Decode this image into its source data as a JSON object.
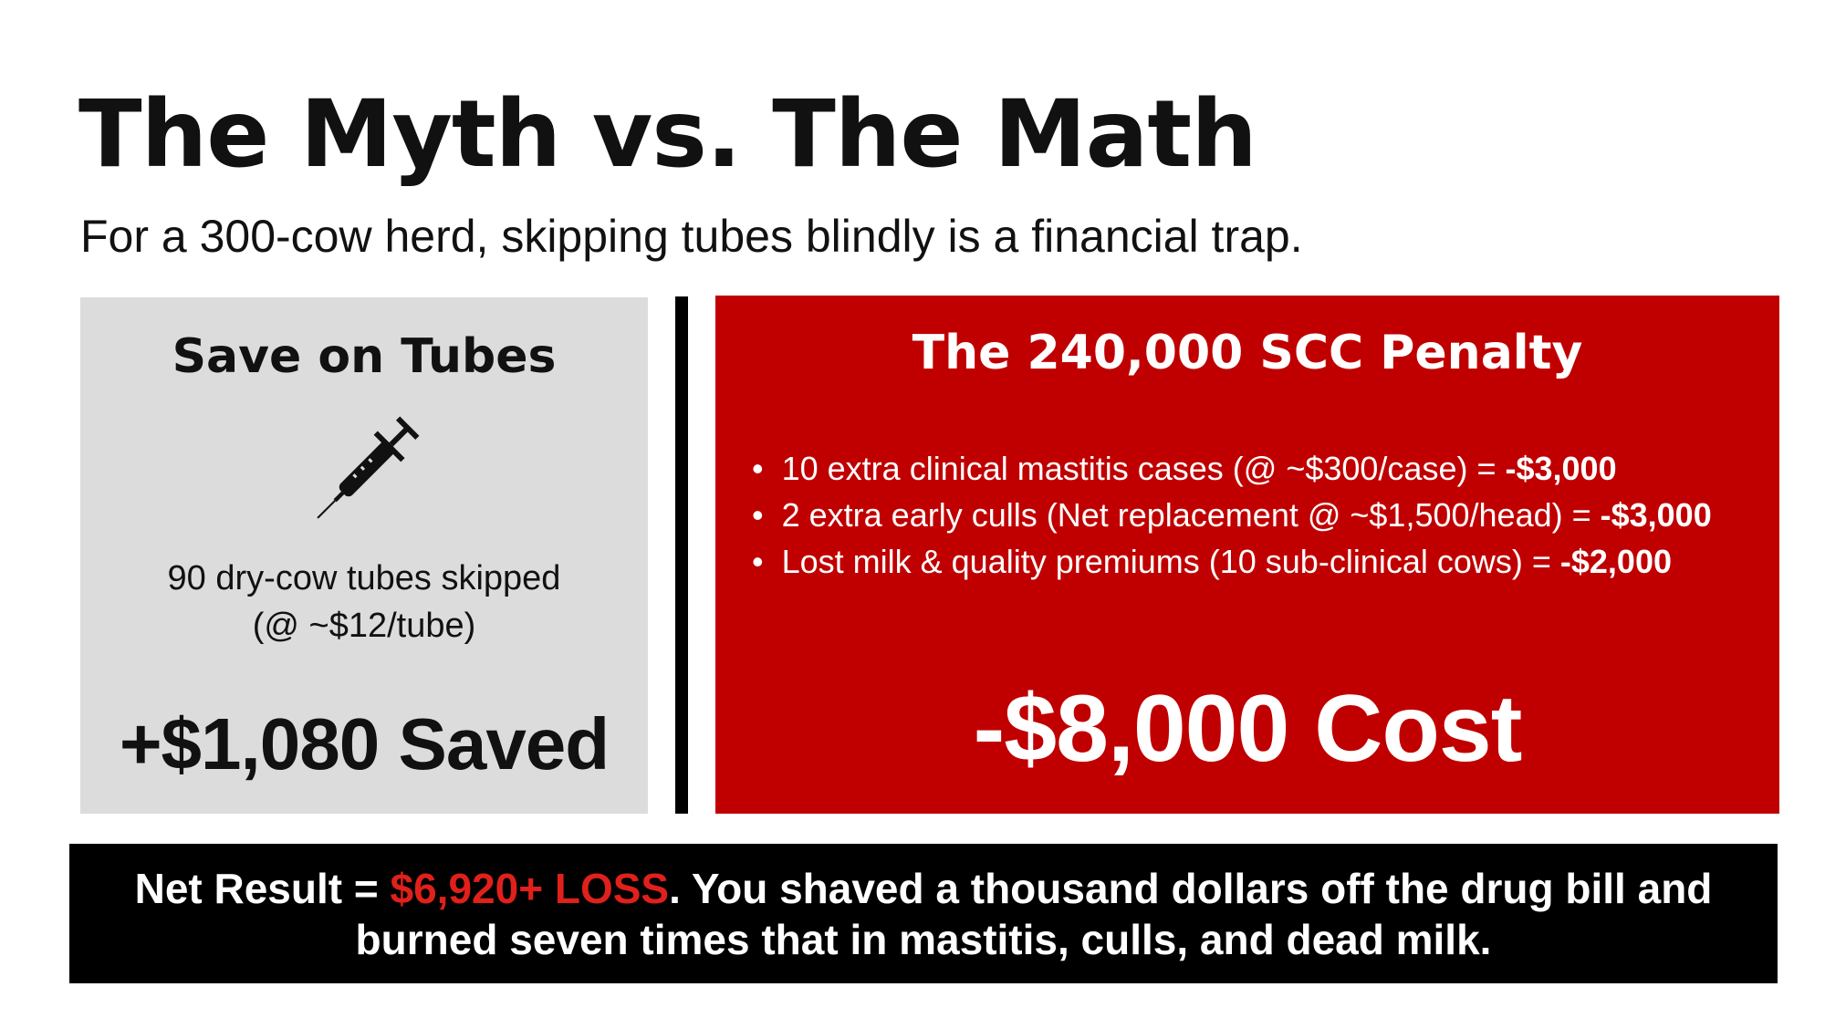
{
  "title": "The Myth vs. The Math",
  "subtitle": "For a 300-cow herd, skipping tubes blindly is a financial trap.",
  "left_panel": {
    "heading": "Save on Tubes",
    "icon": "syringe-icon",
    "desc_line1": "90 dry-cow tubes skipped",
    "desc_line2": "(@ ~$12/tube)",
    "result": "+$1,080 Saved"
  },
  "right_panel": {
    "heading": "The 240,000 SCC Penalty",
    "items": [
      {
        "text": "10 extra clinical mastitis cases (@ ~$300/case) = ",
        "amount": "-$3,000"
      },
      {
        "text": "2 extra early culls (Net replacement @ ~$1,500/head) = ",
        "amount": "-$3,000"
      },
      {
        "text": "Lost milk & quality premiums (10 sub-clinical cows) = ",
        "amount": "-$2,000"
      }
    ],
    "result": "-$8,000 Cost"
  },
  "bottom": {
    "prefix": "Net Result = ",
    "loss": "$6,920+ LOSS",
    "suffix": ". You shaved a thousand dollars off the drug bill and burned seven times that in mastitis, culls, and dead milk."
  },
  "colors": {
    "red_panel": "#c00000",
    "gray_panel": "#dcdcdc",
    "loss_text": "#e0201b"
  }
}
